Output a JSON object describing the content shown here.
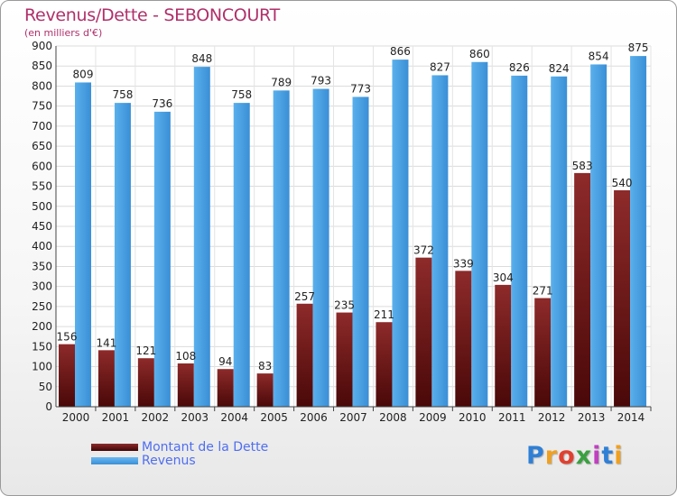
{
  "chart_data": {
    "type": "bar",
    "title": "Revenus/Dette - SEBONCOURT",
    "subtitle": "(en milliers d'€)",
    "categories": [
      "2000",
      "2001",
      "2002",
      "2003",
      "2004",
      "2005",
      "2006",
      "2007",
      "2008",
      "2009",
      "2010",
      "2011",
      "2012",
      "2013",
      "2014"
    ],
    "series": [
      {
        "name": "Montant de la Dette",
        "color": "#7a1a1a",
        "values": [
          156,
          141,
          121,
          108,
          94,
          83,
          257,
          235,
          211,
          372,
          339,
          304,
          271,
          583,
          540
        ]
      },
      {
        "name": "Revenus",
        "color": "#4a9fe0",
        "values": [
          809,
          758,
          736,
          848,
          758,
          789,
          793,
          773,
          866,
          827,
          860,
          826,
          824,
          854,
          875
        ]
      }
    ],
    "ylim": [
      0,
      900
    ],
    "ystep": 50,
    "grid": true,
    "legend_position": "bottom-left"
  },
  "logo": {
    "text": "Proxiti",
    "colors": [
      "#2f7fd6",
      "#f0a020",
      "#e04030",
      "#3aa040",
      "#c040c0",
      "#2f7fd6",
      "#f0a020"
    ]
  }
}
